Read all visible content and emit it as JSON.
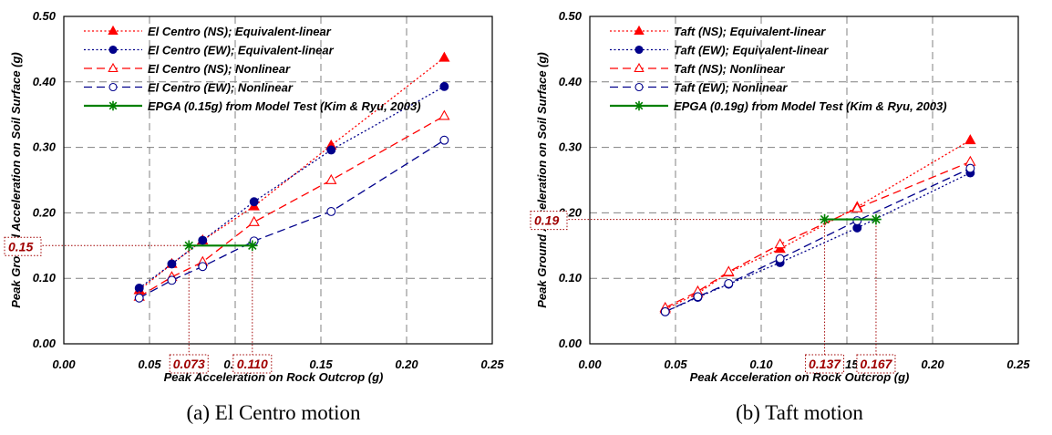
{
  "chart_data": [
    {
      "type": "line",
      "caption": "(a) El Centro motion",
      "xlabel": "Peak Acceleration on Rock Outcrop (g)",
      "ylabel": "Peak Ground Acceleration on Soil Surface (g)",
      "xlim": [
        0,
        0.25
      ],
      "ylim": [
        0,
        0.5
      ],
      "xticks": [
        "0.00",
        "0.05",
        "0.10",
        "0.15",
        "0.20",
        "0.25"
      ],
      "yticks": [
        "0.00",
        "0.10",
        "0.20",
        "0.30",
        "0.40",
        "0.50"
      ],
      "grid": true,
      "legend": "top-left",
      "series": [
        {
          "name": "El Centro (NS); Equivalent-linear",
          "color": "#ff0000",
          "marker": "filled-triangle",
          "line": "dotted",
          "x": [
            0.044,
            0.063,
            0.081,
            0.111,
            0.156,
            0.222
          ],
          "y": [
            0.082,
            0.122,
            0.158,
            0.21,
            0.303,
            0.437
          ]
        },
        {
          "name": "El Centro (EW); Equivalent-linear",
          "color": "#00008b",
          "marker": "filled-circle",
          "line": "dotted",
          "x": [
            0.044,
            0.063,
            0.081,
            0.111,
            0.156,
            0.222
          ],
          "y": [
            0.085,
            0.122,
            0.158,
            0.217,
            0.296,
            0.393
          ]
        },
        {
          "name": "El Centro (NS); Nonlinear",
          "color": "#ff0000",
          "marker": "open-triangle",
          "line": "dashed",
          "x": [
            0.044,
            0.063,
            0.081,
            0.111,
            0.156,
            0.222
          ],
          "y": [
            0.072,
            0.102,
            0.125,
            0.186,
            0.25,
            0.348
          ]
        },
        {
          "name": "El Centro (EW); Nonlinear",
          "color": "#00008b",
          "marker": "open-circle",
          "line": "dashed",
          "x": [
            0.044,
            0.063,
            0.081,
            0.111,
            0.156,
            0.222
          ],
          "y": [
            0.07,
            0.097,
            0.118,
            0.157,
            0.202,
            0.311
          ]
        },
        {
          "name": "EPGA (0.15g) from Model Test (Kim & Ryu, 2003)",
          "color": "#008000",
          "marker": "asterisk",
          "line": "solid",
          "x": [
            0.073,
            0.11
          ],
          "y": [
            0.15,
            0.15
          ]
        }
      ],
      "annotations": {
        "y_value": "0.15",
        "x_values": [
          "0.073",
          "0.110"
        ],
        "y": 0.15,
        "xs": [
          0.073,
          0.11
        ]
      }
    },
    {
      "type": "line",
      "caption": "(b) Taft motion",
      "xlabel": "Peak Acceleration on Rock Outcrop (g)",
      "ylabel": "Peak Ground Acceleration on Soil Surface (g)",
      "xlim": [
        0,
        0.25
      ],
      "ylim": [
        0,
        0.5
      ],
      "xticks": [
        "0.00",
        "0.05",
        "0.10",
        "0.15",
        "0.20",
        "0.25"
      ],
      "yticks": [
        "0.00",
        "0.10",
        "0.20",
        "0.30",
        "0.40",
        "0.50"
      ],
      "grid": true,
      "legend": "top-left",
      "series": [
        {
          "name": "Taft (NS); Equivalent-linear",
          "color": "#ff0000",
          "marker": "filled-triangle",
          "line": "dotted",
          "x": [
            0.044,
            0.063,
            0.081,
            0.111,
            0.156,
            0.222
          ],
          "y": [
            0.053,
            0.077,
            0.109,
            0.145,
            0.209,
            0.311
          ]
        },
        {
          "name": "Taft (EW); Equivalent-linear",
          "color": "#00008b",
          "marker": "filled-circle",
          "line": "dotted",
          "x": [
            0.044,
            0.063,
            0.081,
            0.111,
            0.156,
            0.222
          ],
          "y": [
            0.049,
            0.071,
            0.091,
            0.124,
            0.177,
            0.261
          ]
        },
        {
          "name": "Taft (NS); Nonlinear",
          "color": "#ff0000",
          "marker": "open-triangle",
          "line": "dashed",
          "x": [
            0.044,
            0.063,
            0.081,
            0.111,
            0.156,
            0.222
          ],
          "y": [
            0.055,
            0.08,
            0.11,
            0.152,
            0.207,
            0.278
          ]
        },
        {
          "name": "Taft (EW); Nonlinear",
          "color": "#00008b",
          "marker": "open-circle",
          "line": "dashed",
          "x": [
            0.044,
            0.063,
            0.081,
            0.111,
            0.156,
            0.222
          ],
          "y": [
            0.049,
            0.072,
            0.092,
            0.13,
            0.188,
            0.268
          ]
        },
        {
          "name": "EPGA (0.19g) from Model Test (Kim & Ryu, 2003)",
          "color": "#008000",
          "marker": "asterisk",
          "line": "solid",
          "x": [
            0.137,
            0.167
          ],
          "y": [
            0.19,
            0.19
          ]
        }
      ],
      "annotations": {
        "y_value": "0.19",
        "x_values": [
          "0.137",
          "0.167"
        ],
        "y": 0.19,
        "xs": [
          0.137,
          0.167
        ]
      }
    }
  ]
}
